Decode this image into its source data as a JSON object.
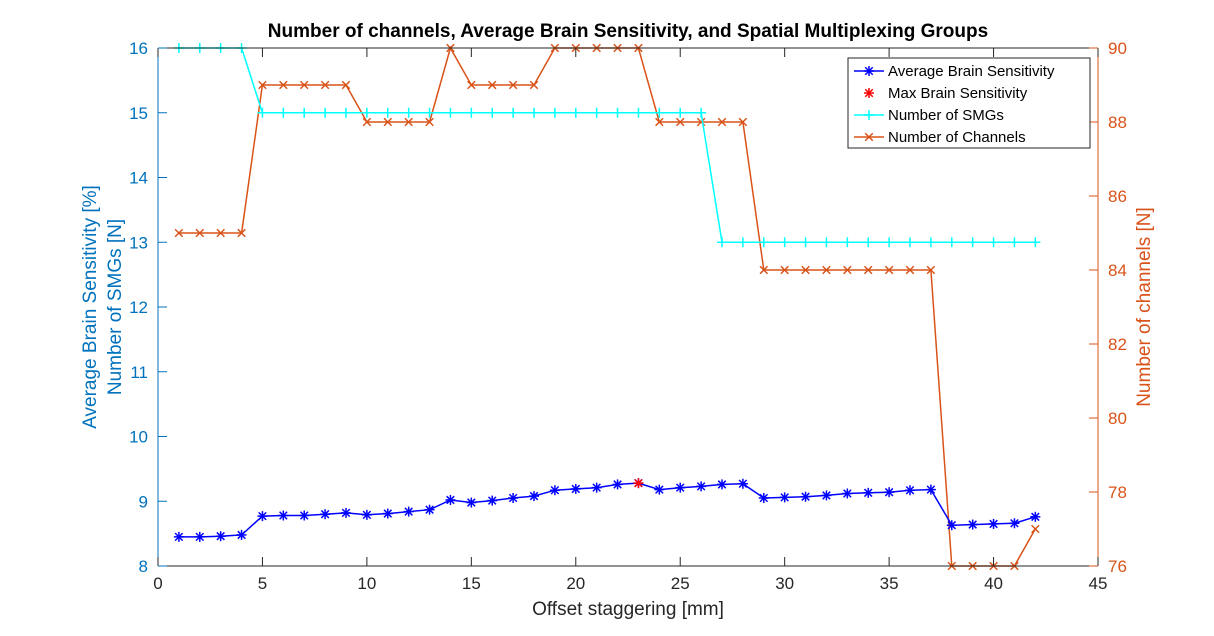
{
  "chart_data": {
    "type": "line",
    "title": "Number of channels, Average Brain Sensitivity, and Spatial Multiplexing Groups",
    "xlabel": "Offset staggering [mm]",
    "ylabel_left": [
      "Average Brain Sensitivity [%]",
      "Number of SMGs [N]"
    ],
    "ylabel_right": "Number of channels [N]",
    "xlim": [
      0,
      45
    ],
    "ylim_left": [
      8,
      16
    ],
    "ylim_right": [
      76,
      90
    ],
    "x_ticks": [
      "0",
      "5",
      "10",
      "15",
      "20",
      "25",
      "30",
      "35",
      "40",
      "45"
    ],
    "y_left_ticks": [
      "8",
      "9",
      "10",
      "11",
      "12",
      "13",
      "14",
      "15",
      "16"
    ],
    "y_right_ticks": [
      "76",
      "78",
      "80",
      "82",
      "84",
      "86",
      "88",
      "90"
    ],
    "colors": {
      "left_axis": "#0072BD",
      "right_axis": "#D95319",
      "sensitivity": "#0000FF",
      "max": "#FF0000",
      "smg": "#00FFFF",
      "channels": "#D95319"
    },
    "legend_position": "top-right",
    "legend": [
      "Average Brain Sensitivity",
      "Max Brain Sensitivity",
      "Number of SMGs",
      "Number of Channels"
    ],
    "series": [
      {
        "name": "Average Brain Sensitivity",
        "axis": "left",
        "marker": "asterisk",
        "x": [
          1,
          2,
          3,
          4,
          5,
          6,
          7,
          8,
          9,
          10,
          11,
          12,
          13,
          14,
          15,
          16,
          17,
          18,
          19,
          20,
          21,
          22,
          23,
          24,
          25,
          26,
          27,
          28,
          29,
          30,
          31,
          32,
          33,
          34,
          35,
          36,
          37,
          38,
          39,
          40,
          41,
          42
        ],
        "values": [
          8.45,
          8.45,
          8.46,
          8.48,
          8.77,
          8.78,
          8.78,
          8.8,
          8.82,
          8.79,
          8.81,
          8.84,
          8.87,
          9.02,
          8.98,
          9.01,
          9.05,
          9.08,
          9.17,
          9.19,
          9.21,
          9.26,
          9.28,
          9.18,
          9.21,
          9.23,
          9.26,
          9.27,
          9.05,
          9.06,
          9.07,
          9.09,
          9.12,
          9.13,
          9.14,
          9.17,
          9.18,
          8.63,
          8.64,
          8.65,
          8.66,
          8.76
        ]
      },
      {
        "name": "Max Brain Sensitivity",
        "axis": "left",
        "marker": "asterisk",
        "x": [
          23
        ],
        "values": [
          9.28
        ]
      },
      {
        "name": "Number of SMGs",
        "axis": "left",
        "marker": "plus",
        "x": [
          1,
          2,
          3,
          4,
          5,
          6,
          7,
          8,
          9,
          10,
          11,
          12,
          13,
          14,
          15,
          16,
          17,
          18,
          19,
          20,
          21,
          22,
          23,
          24,
          25,
          26,
          27,
          28,
          29,
          30,
          31,
          32,
          33,
          34,
          35,
          36,
          37,
          38,
          39,
          40,
          41,
          42
        ],
        "values": [
          16,
          16,
          16,
          16,
          15,
          15,
          15,
          15,
          15,
          15,
          15,
          15,
          15,
          15,
          15,
          15,
          15,
          15,
          15,
          15,
          15,
          15,
          15,
          15,
          15,
          15,
          13,
          13,
          13,
          13,
          13,
          13,
          13,
          13,
          13,
          13,
          13,
          13,
          13,
          13,
          13,
          13
        ]
      },
      {
        "name": "Number of Channels",
        "axis": "right",
        "marker": "x",
        "x": [
          1,
          2,
          3,
          4,
          5,
          6,
          7,
          8,
          9,
          10,
          11,
          12,
          13,
          14,
          15,
          16,
          17,
          18,
          19,
          20,
          21,
          22,
          23,
          24,
          25,
          26,
          27,
          28,
          29,
          30,
          31,
          32,
          33,
          34,
          35,
          36,
          37,
          38,
          39,
          40,
          41,
          42
        ],
        "values": [
          85,
          85,
          85,
          85,
          89,
          89,
          89,
          89,
          89,
          88,
          88,
          88,
          88,
          90,
          89,
          89,
          89,
          89,
          90,
          90,
          90,
          90,
          90,
          88,
          88,
          88,
          88,
          88,
          84,
          84,
          84,
          84,
          84,
          84,
          84,
          84,
          84,
          76,
          76,
          76,
          76,
          77
        ]
      }
    ]
  }
}
